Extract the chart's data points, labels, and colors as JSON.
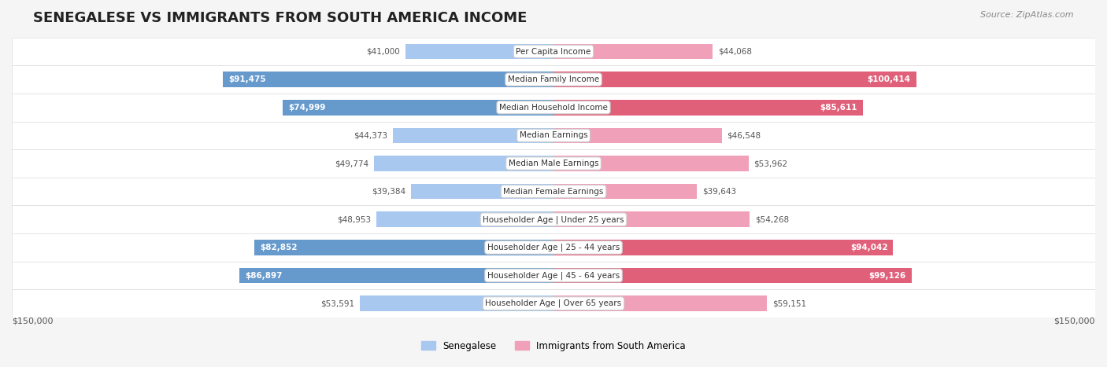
{
  "title": "SENEGALESE VS IMMIGRANTS FROM SOUTH AMERICA INCOME",
  "source": "Source: ZipAtlas.com",
  "categories": [
    "Per Capita Income",
    "Median Family Income",
    "Median Household Income",
    "Median Earnings",
    "Median Male Earnings",
    "Median Female Earnings",
    "Householder Age | Under 25 years",
    "Householder Age | 25 - 44 years",
    "Householder Age | 45 - 64 years",
    "Householder Age | Over 65 years"
  ],
  "senegalese_values": [
    41000,
    91475,
    74999,
    44373,
    49774,
    39384,
    48953,
    82852,
    86897,
    53591
  ],
  "immigrant_values": [
    44068,
    100414,
    85611,
    46548,
    53962,
    39643,
    54268,
    94042,
    99126,
    59151
  ],
  "senegalese_labels": [
    "$41,000",
    "$91,475",
    "$74,999",
    "$44,373",
    "$49,774",
    "$39,384",
    "$48,953",
    "$82,852",
    "$86,897",
    "$53,591"
  ],
  "immigrant_labels": [
    "$44,068",
    "$100,414",
    "$85,611",
    "$46,548",
    "$53,962",
    "$39,643",
    "$54,268",
    "$94,042",
    "$99,126",
    "$59,151"
  ],
  "max_value": 150000,
  "color_senegalese_light": "#a8c8f0",
  "color_senegalese_dark": "#6699cc",
  "color_immigrant_light": "#f0a0b8",
  "color_immigrant_dark": "#e0607a",
  "bar_height": 0.55,
  "background_color": "#f5f5f5",
  "row_bg_color": "#ffffff",
  "legend_label_senegalese": "Senegalese",
  "legend_label_immigrant": "Immigrants from South America",
  "xlim_label_left": "$150,000",
  "xlim_label_right": "$150,000",
  "threshold_for_dark": 70000
}
